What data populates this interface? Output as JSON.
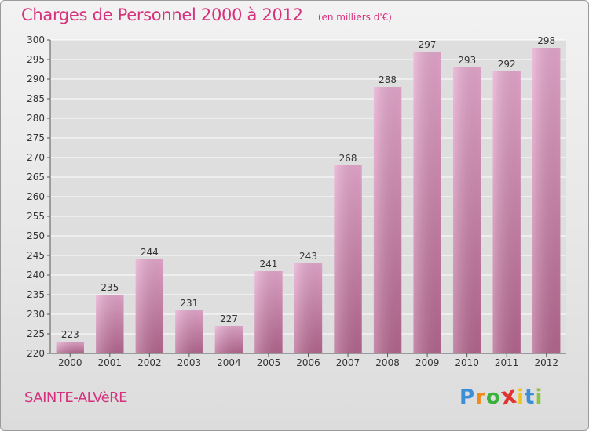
{
  "title": "Charges de Personnel 2000 à 2012",
  "unit": "(en milliers d'€)",
  "commune": "SAINTE-ALVèRE",
  "logo": {
    "letters": [
      "P",
      "r",
      "o",
      "x",
      "i",
      "t",
      "i"
    ],
    "colors": [
      "#3a8fd6",
      "#f08a1c",
      "#3bb33b",
      "#e0332e",
      "#f0c419",
      "#3a8fd6",
      "#8bc43f"
    ]
  },
  "colors": {
    "accent": "#d6317c",
    "bar_light": "#e6a8ce",
    "bar_dark": "#b5668f",
    "grid": "#ffffff",
    "plot_background": "#dedede"
  },
  "chart_data": {
    "type": "bar",
    "categories": [
      "2000",
      "2001",
      "2002",
      "2003",
      "2004",
      "2005",
      "2006",
      "2007",
      "2008",
      "2009",
      "2010",
      "2011",
      "2012"
    ],
    "values": [
      223,
      235,
      244,
      231,
      227,
      241,
      243,
      268,
      288,
      297,
      293,
      292,
      298
    ],
    "ylim": [
      220,
      300
    ],
    "yticks": [
      220,
      225,
      230,
      235,
      240,
      245,
      250,
      255,
      260,
      265,
      270,
      275,
      280,
      285,
      290,
      295,
      300
    ],
    "grid": true,
    "data_labels": true
  }
}
